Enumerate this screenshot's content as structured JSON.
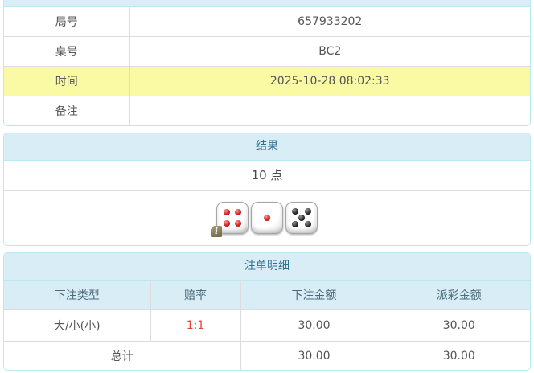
{
  "colors": {
    "panel_border": "#bce8f1",
    "header_bg": "#d9edf7",
    "header_text": "#31708f",
    "divider": "#dddddd",
    "highlight_bg": "#fafaa5",
    "odds_red": "#e8413c"
  },
  "info_table": {
    "rows": [
      {
        "label": "局号",
        "value": "657933202",
        "highlight": false
      },
      {
        "label": "桌号",
        "value": "BC2",
        "highlight": false
      },
      {
        "label": "时间",
        "value": "2025-10-28 08:02:33",
        "highlight": true
      },
      {
        "label": "备注",
        "value": "",
        "highlight": false
      }
    ]
  },
  "result_panel": {
    "title": "结果",
    "points": "10 点",
    "dice": [
      {
        "value": 4,
        "pip_color": "red"
      },
      {
        "value": 1,
        "pip_color": "red"
      },
      {
        "value": 5,
        "pip_color": "black"
      }
    ],
    "info_badge": "i"
  },
  "bets_panel": {
    "title": "注单明细",
    "columns": [
      "下注类型",
      "赔率",
      "下注金额",
      "派彩金额"
    ],
    "rows": [
      {
        "type": "大/小(小)",
        "odds": "1:1",
        "bet": "30.00",
        "payout": "30.00"
      }
    ],
    "total": {
      "label": "总计",
      "bet": "30.00",
      "payout": "30.00"
    }
  }
}
